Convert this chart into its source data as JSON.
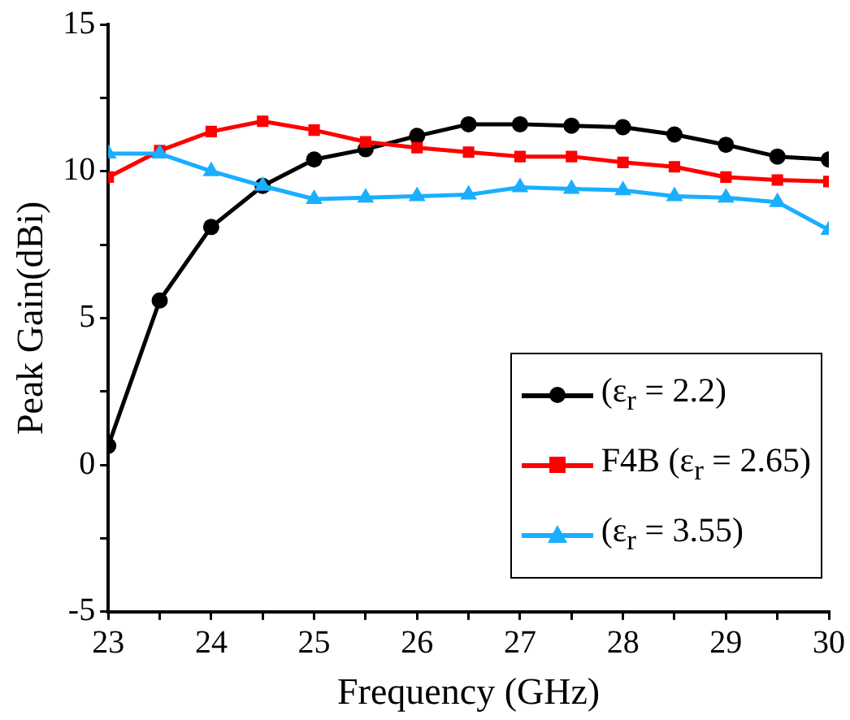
{
  "chart_data": {
    "type": "line",
    "xlabel": "Frequency (GHz)",
    "ylabel": "Peak Gain(dBi)",
    "x": [
      23,
      23.5,
      24,
      24.5,
      25,
      25.5,
      26,
      26.5,
      27,
      27.5,
      28,
      28.5,
      29,
      29.5,
      30
    ],
    "xlim": [
      23,
      30
    ],
    "xticks": [
      23,
      {
        "value": 23.5,
        "label": null
      },
      24,
      {
        "value": 24.5,
        "label": null
      },
      25,
      {
        "value": 25.5,
        "label": null
      },
      26,
      {
        "value": 26.5,
        "label": null
      },
      27,
      {
        "value": 27.5,
        "label": null
      },
      28,
      {
        "value": 28.5,
        "label": null
      },
      29,
      {
        "value": 29.5,
        "label": null
      },
      30
    ],
    "ylim": [
      -5,
      15
    ],
    "yticks": [
      -5,
      {
        "value": -2.5,
        "label": null
      },
      0,
      {
        "value": 2.5,
        "label": null
      },
      5,
      {
        "value": 7.5,
        "label": null
      },
      10,
      {
        "value": 12.5,
        "label": null
      },
      15
    ],
    "grid": false,
    "legend": "bottom right",
    "line_style": "solid",
    "series": [
      {
        "name": "(ε$_{r}$ = 2.2)",
        "color": "#000000",
        "marker": "circle",
        "values": [
          0.65,
          5.6,
          8.1,
          9.5,
          10.4,
          10.75,
          11.2,
          11.6,
          11.6,
          11.55,
          11.5,
          11.25,
          10.9,
          10.5,
          10.4
        ]
      },
      {
        "name": "F4B (ε$_{r}$ = 2.65)",
        "color": "#ff0000",
        "marker": "square",
        "values": [
          9.8,
          10.7,
          11.35,
          11.7,
          11.4,
          11.0,
          10.8,
          10.65,
          10.5,
          10.5,
          10.3,
          10.15,
          9.8,
          9.7,
          9.65
        ]
      },
      {
        "name": "(ε$_{r}$ = 3.55)",
        "color": "#1aaeff",
        "marker": "triangle",
        "values": [
          10.6,
          10.6,
          10.0,
          9.5,
          9.05,
          9.1,
          9.15,
          9.2,
          9.45,
          9.4,
          9.35,
          9.15,
          9.1,
          8.95,
          8.0
        ]
      }
    ]
  }
}
